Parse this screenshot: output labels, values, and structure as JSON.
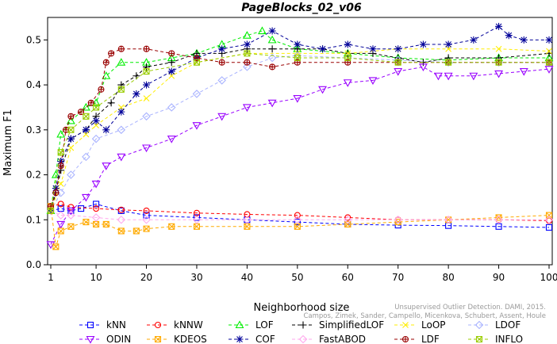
{
  "watermark": {
    "line1": "Unsupervised Outlier Detection. DAMI, 2015.",
    "line2": "Campos, Zimek, Sander, Campello, Micenkova, Schubert, Assent, Houle"
  },
  "chart_data": {
    "type": "line",
    "title": "PageBlocks_02_v06",
    "xlabel": "Neighborhood size",
    "ylabel": "Maximum F1",
    "xlim": [
      1,
      100
    ],
    "ylim": [
      0,
      0.55
    ],
    "xticks": [
      1,
      10,
      20,
      30,
      40,
      50,
      60,
      70,
      80,
      90,
      100
    ],
    "yticks": [
      0.0,
      0.1,
      0.2,
      0.3,
      0.4,
      0.5
    ],
    "grid": false,
    "legend_placement": "bottom",
    "series": [
      {
        "name": "kNN",
        "color": "#0000ff",
        "marker": "square",
        "points": [
          [
            1,
            0.12
          ],
          [
            3,
            0.125
          ],
          [
            5,
            0.12
          ],
          [
            7,
            0.125
          ],
          [
            10,
            0.135
          ],
          [
            15,
            0.12
          ],
          [
            20,
            0.11
          ],
          [
            30,
            0.105
          ],
          [
            40,
            0.1
          ],
          [
            50,
            0.095
          ],
          [
            60,
            0.09
          ],
          [
            70,
            0.088
          ],
          [
            80,
            0.087
          ],
          [
            90,
            0.085
          ],
          [
            100,
            0.083
          ]
        ]
      },
      {
        "name": "kNNW",
        "color": "#ff0000",
        "marker": "circle",
        "points": [
          [
            1,
            0.13
          ],
          [
            3,
            0.135
          ],
          [
            5,
            0.128
          ],
          [
            10,
            0.125
          ],
          [
            15,
            0.122
          ],
          [
            20,
            0.12
          ],
          [
            30,
            0.115
          ],
          [
            40,
            0.112
          ],
          [
            50,
            0.11
          ],
          [
            60,
            0.105
          ],
          [
            70,
            0.1
          ],
          [
            80,
            0.1
          ],
          [
            90,
            0.1
          ],
          [
            100,
            0.098
          ]
        ]
      },
      {
        "name": "LOF",
        "color": "#00ee00",
        "marker": "triangle",
        "points": [
          [
            1,
            0.12
          ],
          [
            2,
            0.2
          ],
          [
            3,
            0.29
          ],
          [
            5,
            0.32
          ],
          [
            8,
            0.35
          ],
          [
            10,
            0.36
          ],
          [
            12,
            0.42
          ],
          [
            15,
            0.45
          ],
          [
            20,
            0.45
          ],
          [
            25,
            0.46
          ],
          [
            30,
            0.47
          ],
          [
            35,
            0.49
          ],
          [
            40,
            0.51
          ],
          [
            43,
            0.52
          ],
          [
            45,
            0.5
          ],
          [
            50,
            0.48
          ],
          [
            60,
            0.47
          ],
          [
            70,
            0.46
          ],
          [
            80,
            0.455
          ],
          [
            90,
            0.46
          ],
          [
            100,
            0.46
          ]
        ]
      },
      {
        "name": "SimplifiedLOF",
        "color": "#000000",
        "marker": "plus",
        "points": [
          [
            1,
            0.12
          ],
          [
            2,
            0.16
          ],
          [
            3,
            0.21
          ],
          [
            5,
            0.28
          ],
          [
            8,
            0.3
          ],
          [
            10,
            0.33
          ],
          [
            13,
            0.36
          ],
          [
            15,
            0.4
          ],
          [
            18,
            0.42
          ],
          [
            20,
            0.44
          ],
          [
            25,
            0.45
          ],
          [
            30,
            0.47
          ],
          [
            35,
            0.47
          ],
          [
            40,
            0.48
          ],
          [
            45,
            0.48
          ],
          [
            50,
            0.48
          ],
          [
            55,
            0.48
          ],
          [
            60,
            0.47
          ],
          [
            65,
            0.47
          ],
          [
            70,
            0.46
          ],
          [
            75,
            0.45
          ],
          [
            80,
            0.46
          ],
          [
            90,
            0.46
          ],
          [
            100,
            0.47
          ]
        ]
      },
      {
        "name": "LoOP",
        "color": "#ffee00",
        "marker": "x",
        "points": [
          [
            1,
            0.12
          ],
          [
            3,
            0.18
          ],
          [
            5,
            0.26
          ],
          [
            8,
            0.29
          ],
          [
            10,
            0.31
          ],
          [
            15,
            0.35
          ],
          [
            20,
            0.37
          ],
          [
            25,
            0.42
          ],
          [
            30,
            0.45
          ],
          [
            40,
            0.47
          ],
          [
            50,
            0.47
          ],
          [
            60,
            0.47
          ],
          [
            70,
            0.48
          ],
          [
            80,
            0.48
          ],
          [
            90,
            0.48
          ],
          [
            100,
            0.475
          ]
        ]
      },
      {
        "name": "LDOF",
        "color": "#aab4ff",
        "marker": "diamond",
        "points": [
          [
            1,
            0.12
          ],
          [
            3,
            0.16
          ],
          [
            5,
            0.2
          ],
          [
            8,
            0.24
          ],
          [
            10,
            0.28
          ],
          [
            15,
            0.3
          ],
          [
            20,
            0.33
          ],
          [
            25,
            0.35
          ],
          [
            30,
            0.38
          ],
          [
            35,
            0.41
          ],
          [
            40,
            0.44
          ],
          [
            45,
            0.46
          ],
          [
            50,
            0.465
          ],
          [
            60,
            0.46
          ],
          [
            70,
            0.455
          ],
          [
            80,
            0.45
          ],
          [
            90,
            0.45
          ],
          [
            100,
            0.45
          ]
        ]
      },
      {
        "name": "ODIN",
        "color": "#9900ff",
        "marker": "triangle-down",
        "points": [
          [
            1,
            0.045
          ],
          [
            3,
            0.09
          ],
          [
            5,
            0.12
          ],
          [
            8,
            0.15
          ],
          [
            10,
            0.18
          ],
          [
            12,
            0.22
          ],
          [
            15,
            0.24
          ],
          [
            20,
            0.26
          ],
          [
            25,
            0.28
          ],
          [
            30,
            0.31
          ],
          [
            35,
            0.33
          ],
          [
            40,
            0.35
          ],
          [
            45,
            0.36
          ],
          [
            50,
            0.37
          ],
          [
            55,
            0.39
          ],
          [
            60,
            0.405
          ],
          [
            65,
            0.41
          ],
          [
            70,
            0.43
          ],
          [
            75,
            0.44
          ],
          [
            78,
            0.42
          ],
          [
            80,
            0.42
          ],
          [
            85,
            0.42
          ],
          [
            90,
            0.425
          ],
          [
            95,
            0.43
          ],
          [
            100,
            0.435
          ]
        ]
      },
      {
        "name": "KDEOS",
        "color": "#ffaa00",
        "marker": "square-x",
        "points": [
          [
            1,
            0.13
          ],
          [
            2,
            0.04
          ],
          [
            3,
            0.075
          ],
          [
            5,
            0.085
          ],
          [
            8,
            0.095
          ],
          [
            10,
            0.09
          ],
          [
            12,
            0.09
          ],
          [
            15,
            0.075
          ],
          [
            18,
            0.075
          ],
          [
            20,
            0.08
          ],
          [
            25,
            0.085
          ],
          [
            30,
            0.085
          ],
          [
            40,
            0.085
          ],
          [
            50,
            0.085
          ],
          [
            60,
            0.09
          ],
          [
            70,
            0.095
          ],
          [
            80,
            0.1
          ],
          [
            90,
            0.105
          ],
          [
            100,
            0.11
          ]
        ]
      },
      {
        "name": "COF",
        "color": "#000099",
        "marker": "asterisk",
        "points": [
          [
            1,
            0.12
          ],
          [
            2,
            0.17
          ],
          [
            3,
            0.23
          ],
          [
            5,
            0.28
          ],
          [
            8,
            0.3
          ],
          [
            10,
            0.32
          ],
          [
            12,
            0.3
          ],
          [
            15,
            0.34
          ],
          [
            18,
            0.38
          ],
          [
            20,
            0.4
          ],
          [
            25,
            0.43
          ],
          [
            30,
            0.46
          ],
          [
            35,
            0.48
          ],
          [
            40,
            0.49
          ],
          [
            45,
            0.52
          ],
          [
            50,
            0.49
          ],
          [
            55,
            0.48
          ],
          [
            60,
            0.49
          ],
          [
            65,
            0.48
          ],
          [
            70,
            0.48
          ],
          [
            75,
            0.49
          ],
          [
            80,
            0.49
          ],
          [
            85,
            0.5
          ],
          [
            90,
            0.53
          ],
          [
            92,
            0.51
          ],
          [
            95,
            0.5
          ],
          [
            100,
            0.5
          ]
        ]
      },
      {
        "name": "FastABOD",
        "color": "#ffaaee",
        "marker": "diamond",
        "points": [
          [
            1,
            0.12
          ],
          [
            3,
            0.11
          ],
          [
            5,
            0.11
          ],
          [
            10,
            0.105
          ],
          [
            15,
            0.1
          ],
          [
            20,
            0.1
          ],
          [
            30,
            0.1
          ],
          [
            40,
            0.1
          ],
          [
            50,
            0.1
          ],
          [
            60,
            0.1
          ],
          [
            70,
            0.1
          ],
          [
            80,
            0.1
          ],
          [
            90,
            0.1
          ],
          [
            100,
            0.1
          ]
        ]
      },
      {
        "name": "LDF",
        "color": "#990000",
        "marker": "circle-plus",
        "points": [
          [
            1,
            0.13
          ],
          [
            2,
            0.16
          ],
          [
            3,
            0.22
          ],
          [
            4,
            0.3
          ],
          [
            5,
            0.33
          ],
          [
            7,
            0.34
          ],
          [
            9,
            0.36
          ],
          [
            11,
            0.39
          ],
          [
            12,
            0.45
          ],
          [
            13,
            0.47
          ],
          [
            15,
            0.48
          ],
          [
            20,
            0.48
          ],
          [
            25,
            0.47
          ],
          [
            30,
            0.46
          ],
          [
            35,
            0.45
          ],
          [
            40,
            0.45
          ],
          [
            45,
            0.44
          ],
          [
            50,
            0.45
          ],
          [
            60,
            0.45
          ],
          [
            70,
            0.45
          ],
          [
            80,
            0.45
          ],
          [
            90,
            0.45
          ],
          [
            100,
            0.45
          ]
        ]
      },
      {
        "name": "INFLO",
        "color": "#99cc00",
        "marker": "square-x",
        "points": [
          [
            1,
            0.12
          ],
          [
            3,
            0.25
          ],
          [
            5,
            0.3
          ],
          [
            8,
            0.33
          ],
          [
            10,
            0.35
          ],
          [
            15,
            0.39
          ],
          [
            20,
            0.43
          ],
          [
            30,
            0.45
          ],
          [
            40,
            0.47
          ],
          [
            50,
            0.46
          ],
          [
            60,
            0.46
          ],
          [
            70,
            0.45
          ],
          [
            80,
            0.45
          ],
          [
            90,
            0.45
          ],
          [
            100,
            0.45
          ]
        ]
      }
    ]
  }
}
